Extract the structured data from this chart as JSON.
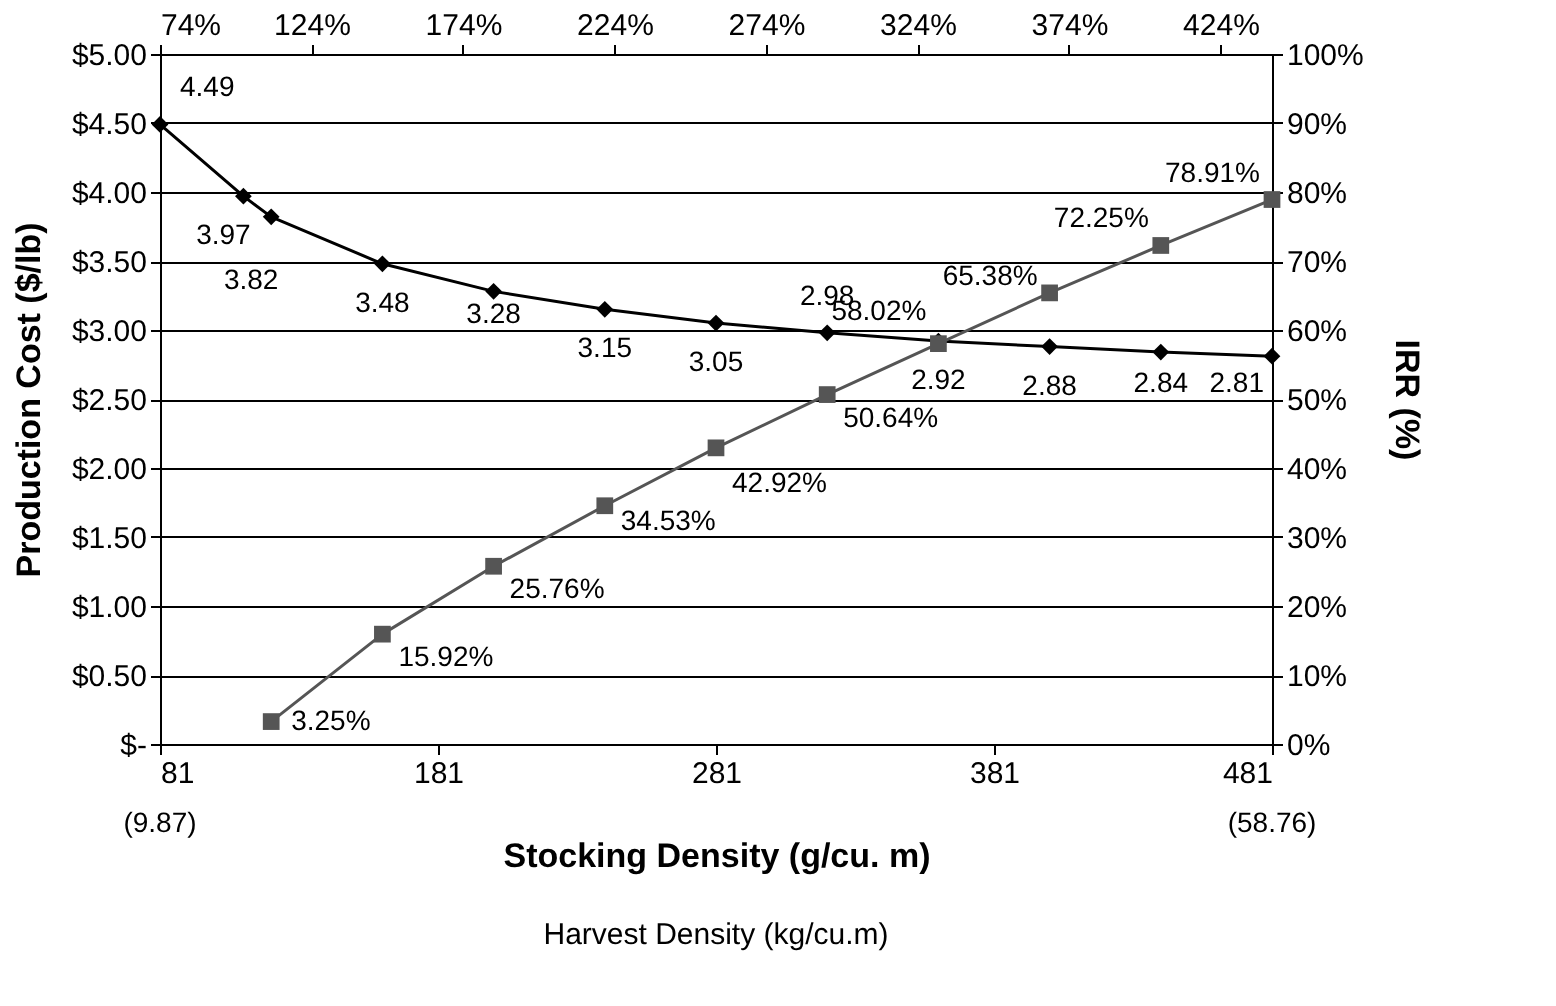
{
  "chart_data": {
    "type": "line",
    "xlabel": "Stocking Density (g/cu. m)",
    "ylabel": "Production Cost ($/lb)",
    "y2label": "IRR (%)",
    "annotations": [
      "(9.87)",
      "(58.76)",
      "Harvest Density (kg/cu.m)"
    ],
    "xlim": [
      81,
      481
    ],
    "xticks": [
      81,
      181,
      281,
      381,
      481
    ],
    "x2lim": [
      74,
      441
    ],
    "x2ticks": [
      {
        "value": 74,
        "label": "74%"
      },
      {
        "value": 124,
        "label": "124%"
      },
      {
        "value": 174,
        "label": "174%"
      },
      {
        "value": 224,
        "label": "224%"
      },
      {
        "value": 274,
        "label": "274%"
      },
      {
        "value": 324,
        "label": "324%"
      },
      {
        "value": 374,
        "label": "374%"
      },
      {
        "value": 424,
        "label": "424%"
      }
    ],
    "ylim": [
      0,
      5
    ],
    "yticks": [
      {
        "value": 0,
        "label": "$-"
      },
      {
        "value": 0.5,
        "label": "$0.50"
      },
      {
        "value": 1,
        "label": "$1.00"
      },
      {
        "value": 1.5,
        "label": "$1.50"
      },
      {
        "value": 2,
        "label": "$2.00"
      },
      {
        "value": 2.5,
        "label": "$2.50"
      },
      {
        "value": 3,
        "label": "$3.00"
      },
      {
        "value": 3.5,
        "label": "$3.50"
      },
      {
        "value": 4,
        "label": "$4.00"
      },
      {
        "value": 4.5,
        "label": "$4.50"
      },
      {
        "value": 5,
        "label": "$5.00"
      }
    ],
    "y2lim": [
      0,
      100
    ],
    "y2ticks": [
      {
        "value": 0,
        "label": "0%"
      },
      {
        "value": 10,
        "label": "10%"
      },
      {
        "value": 20,
        "label": "20%"
      },
      {
        "value": 30,
        "label": "30%"
      },
      {
        "value": 40,
        "label": "40%"
      },
      {
        "value": 50,
        "label": "50%"
      },
      {
        "value": 60,
        "label": "60%"
      },
      {
        "value": 70,
        "label": "70%"
      },
      {
        "value": 80,
        "label": "80%"
      },
      {
        "value": 90,
        "label": "90%"
      },
      {
        "value": 100,
        "label": "100%"
      }
    ],
    "grid": "y",
    "series": [
      {
        "color": "#000000",
        "marker": "diamond",
        "line_style": "solid",
        "x": [
          81,
          111,
          121,
          161,
          201,
          241,
          281,
          321,
          361,
          401,
          441,
          481
        ],
        "values": [
          4.49,
          3.97,
          3.82,
          3.48,
          3.28,
          3.15,
          3.05,
          2.98,
          2.92,
          2.88,
          2.84,
          2.81
        ],
        "value_labels": [
          "4.49",
          "3.97",
          "3.82",
          "3.48",
          "3.28",
          "3.15",
          "3.05",
          "2.98",
          "2.92",
          "2.88",
          "2.84",
          "2.81"
        ]
      },
      {
        "color": "#555555",
        "marker": "square",
        "line_style": "solid",
        "axis": "y2",
        "x": [
          121,
          161,
          201,
          241,
          281,
          321,
          361,
          401,
          441,
          481
        ],
        "values": [
          3.25,
          15.92,
          25.76,
          34.53,
          42.92,
          50.64,
          58.02,
          65.38,
          72.25,
          78.91
        ],
        "value_labels": [
          "3.25%",
          "15.92%",
          "25.76%",
          "34.53%",
          "42.92%",
          "50.64%",
          "58.02%",
          "65.38%",
          "72.25%",
          "78.91%"
        ]
      }
    ]
  }
}
